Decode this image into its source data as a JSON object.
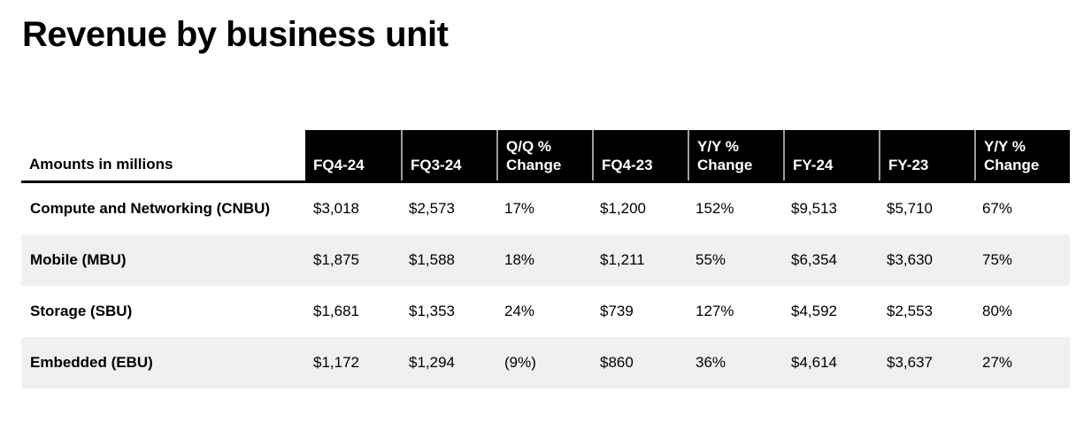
{
  "title": "Revenue by business unit",
  "chart_data": {
    "type": "table",
    "title": "Revenue by business unit",
    "corner_label": "Amounts in millions",
    "columns": [
      "FQ4-24",
      "FQ3-24",
      "Q/Q %\nChange",
      "FQ4-23",
      "Y/Y %\nChange",
      "FY-24",
      "FY-23",
      "Y/Y %\nChange"
    ],
    "rows": [
      {
        "label": "Compute and Networking (CNBU)",
        "values": [
          "$3,018",
          "$2,573",
          "17%",
          "$1,200",
          "152%",
          "$9,513",
          "$5,710",
          "67%"
        ]
      },
      {
        "label": "Mobile (MBU)",
        "values": [
          "$1,875",
          "$1,588",
          "18%",
          "$1,211",
          "55%",
          "$6,354",
          "$3,630",
          "75%"
        ]
      },
      {
        "label": "Storage (SBU)",
        "values": [
          "$1,681",
          "$1,353",
          "24%",
          "$739",
          "127%",
          "$4,592",
          "$2,553",
          "80%"
        ]
      },
      {
        "label": "Embedded (EBU)",
        "values": [
          "$1,172",
          "$1,294",
          "(9%)",
          "$860",
          "36%",
          "$4,614",
          "$3,637",
          "27%"
        ]
      }
    ],
    "layout_hints": {
      "row_banding": "alternating white and light gray starting with white",
      "header_style": "black cells, white bold text, bottom-aligned, thin gray separators"
    }
  },
  "colors": {
    "background": "#ffffff",
    "header_bg": "#000000",
    "header_text": "#ffffff",
    "row_band_bg": "#f0f0f0",
    "header_rule": "#000000",
    "header_separator": "#9d9d9d",
    "text": "#000000"
  }
}
